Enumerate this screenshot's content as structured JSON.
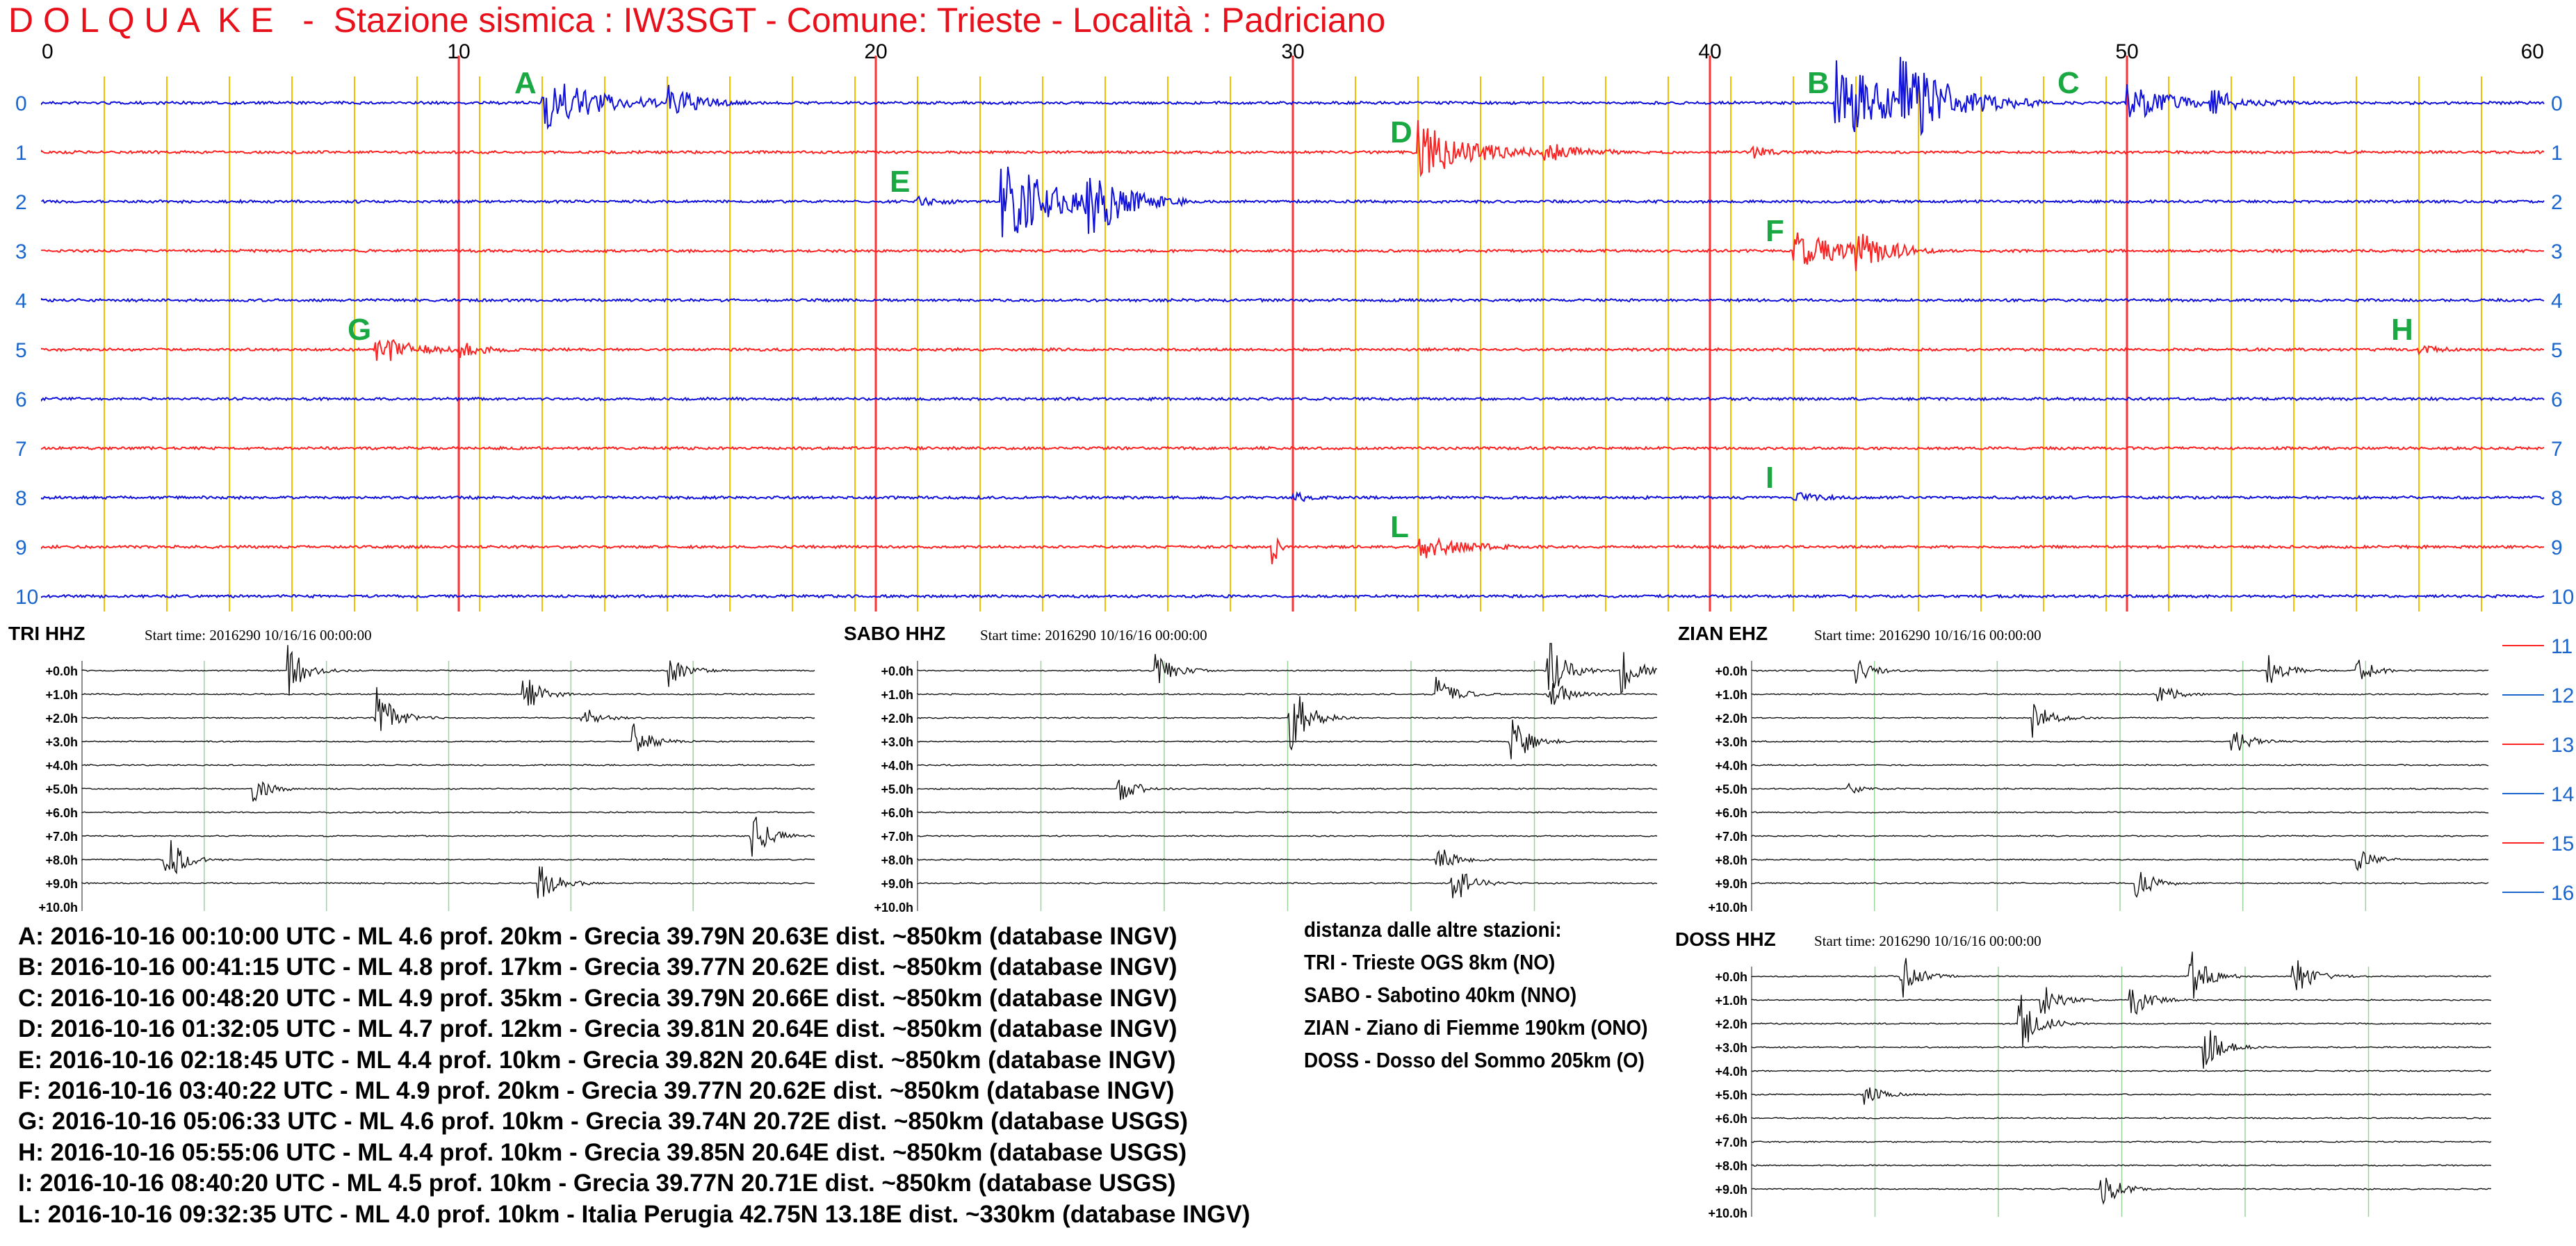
{
  "header": {
    "title": "D O L Q U A  K E   -  Stazione sismica : IW3SGT - Comune: Trieste - Località : Padriciano"
  },
  "helicorder": {
    "x_ticks": [
      "0",
      "10",
      "20",
      "30",
      "40",
      "50",
      "60"
    ],
    "row_labels": [
      "0",
      "1",
      "2",
      "3",
      "4",
      "5",
      "6",
      "7",
      "8",
      "9",
      "10",
      "11",
      "12",
      "13",
      "14",
      "15",
      "16"
    ],
    "colors": {
      "red": "#ff2222",
      "blue": "#1111dd",
      "grid": "#f0c000",
      "axis": "#ff3333",
      "label_green": "#1aa842",
      "tick_blue": "#1a66cc"
    },
    "event_markers": [
      {
        "label": "A",
        "row": 0,
        "minute": 12
      },
      {
        "label": "B",
        "row": 0,
        "minute": 43
      },
      {
        "label": "C",
        "row": 0,
        "minute": 49
      },
      {
        "label": "D",
        "row": 1,
        "minute": 33
      },
      {
        "label": "E",
        "row": 2,
        "minute": 21
      },
      {
        "label": "F",
        "row": 3,
        "minute": 42
      },
      {
        "label": "G",
        "row": 5,
        "minute": 8
      },
      {
        "label": "H",
        "row": 5,
        "minute": 57
      },
      {
        "label": "I",
        "row": 8,
        "minute": 42
      },
      {
        "label": "L",
        "row": 9,
        "minute": 33
      }
    ]
  },
  "stations": [
    {
      "name": "TRI HHZ",
      "start_time": "Start time: 2016290  10/16/16 00:00:00"
    },
    {
      "name": "SABO HHZ",
      "start_time": "Start time: 2016290  10/16/16 00:00:00"
    },
    {
      "name": "ZIAN EHZ",
      "start_time": "Start time: 2016290  10/16/16 00:00:00"
    },
    {
      "name": "DOSS HHZ",
      "start_time": "Start time: 2016290  10/16/16 00:00:00"
    }
  ],
  "station_row_labels": [
    "+0.0h",
    "+1.0h",
    "+2.0h",
    "+3.0h",
    "+4.0h",
    "+5.0h",
    "+6.0h",
    "+7.0h",
    "+8.0h",
    "+9.0h",
    "+10.0h"
  ],
  "events_legend": [
    "A: 2016-10-16 00:10:00 UTC - ML 4.6 prof. 20km - Grecia 39.79N 20.63E dist. ~850km (database INGV)",
    "B: 2016-10-16 00:41:15 UTC - ML 4.8 prof. 17km - Grecia 39.77N 20.62E dist. ~850km (database INGV)",
    "C: 2016-10-16 00:48:20 UTC - ML 4.9 prof. 35km - Grecia 39.79N 20.66E dist. ~850km (database INGV)",
    "D: 2016-10-16 01:32:05 UTC - ML 4.7 prof. 12km - Grecia 39.81N 20.64E dist. ~850km (database INGV)",
    "E: 2016-10-16 02:18:45 UTC - ML 4.4 prof. 10km - Grecia 39.82N 20.64E dist. ~850km (database INGV)",
    "F: 2016-10-16 03:40:22 UTC - ML 4.9 prof. 20km - Grecia 39.77N 20.62E dist. ~850km (database INGV)",
    "G: 2016-10-16 05:06:33 UTC - ML 4.6 prof. 10km - Grecia 39.74N 20.72E dist. ~850km (database USGS)",
    "H: 2016-10-16 05:55:06 UTC - ML 4.4 prof. 10km - Grecia 39.85N 20.64E dist. ~850km (database USGS)",
    "I: 2016-10-16 08:40:20 UTC - ML 4.5 prof. 10km - Grecia 39.77N 20.71E dist. ~850km (database USGS)",
    "L: 2016-10-16 09:32:35 UTC - ML 4.0 prof. 10km - Italia Perugia 42.75N 13.18E dist. ~330km (database INGV)"
  ],
  "distances": {
    "title": "distanza dalle altre stazioni:",
    "items": [
      "TRI - Trieste OGS 8km (NO)",
      "SABO - Sabotino 40km (NNO)",
      "ZIAN - Ziano di Fiemme 190km (ONO)",
      "DOSS - Dosso del Sommo 205km (O)"
    ]
  }
}
